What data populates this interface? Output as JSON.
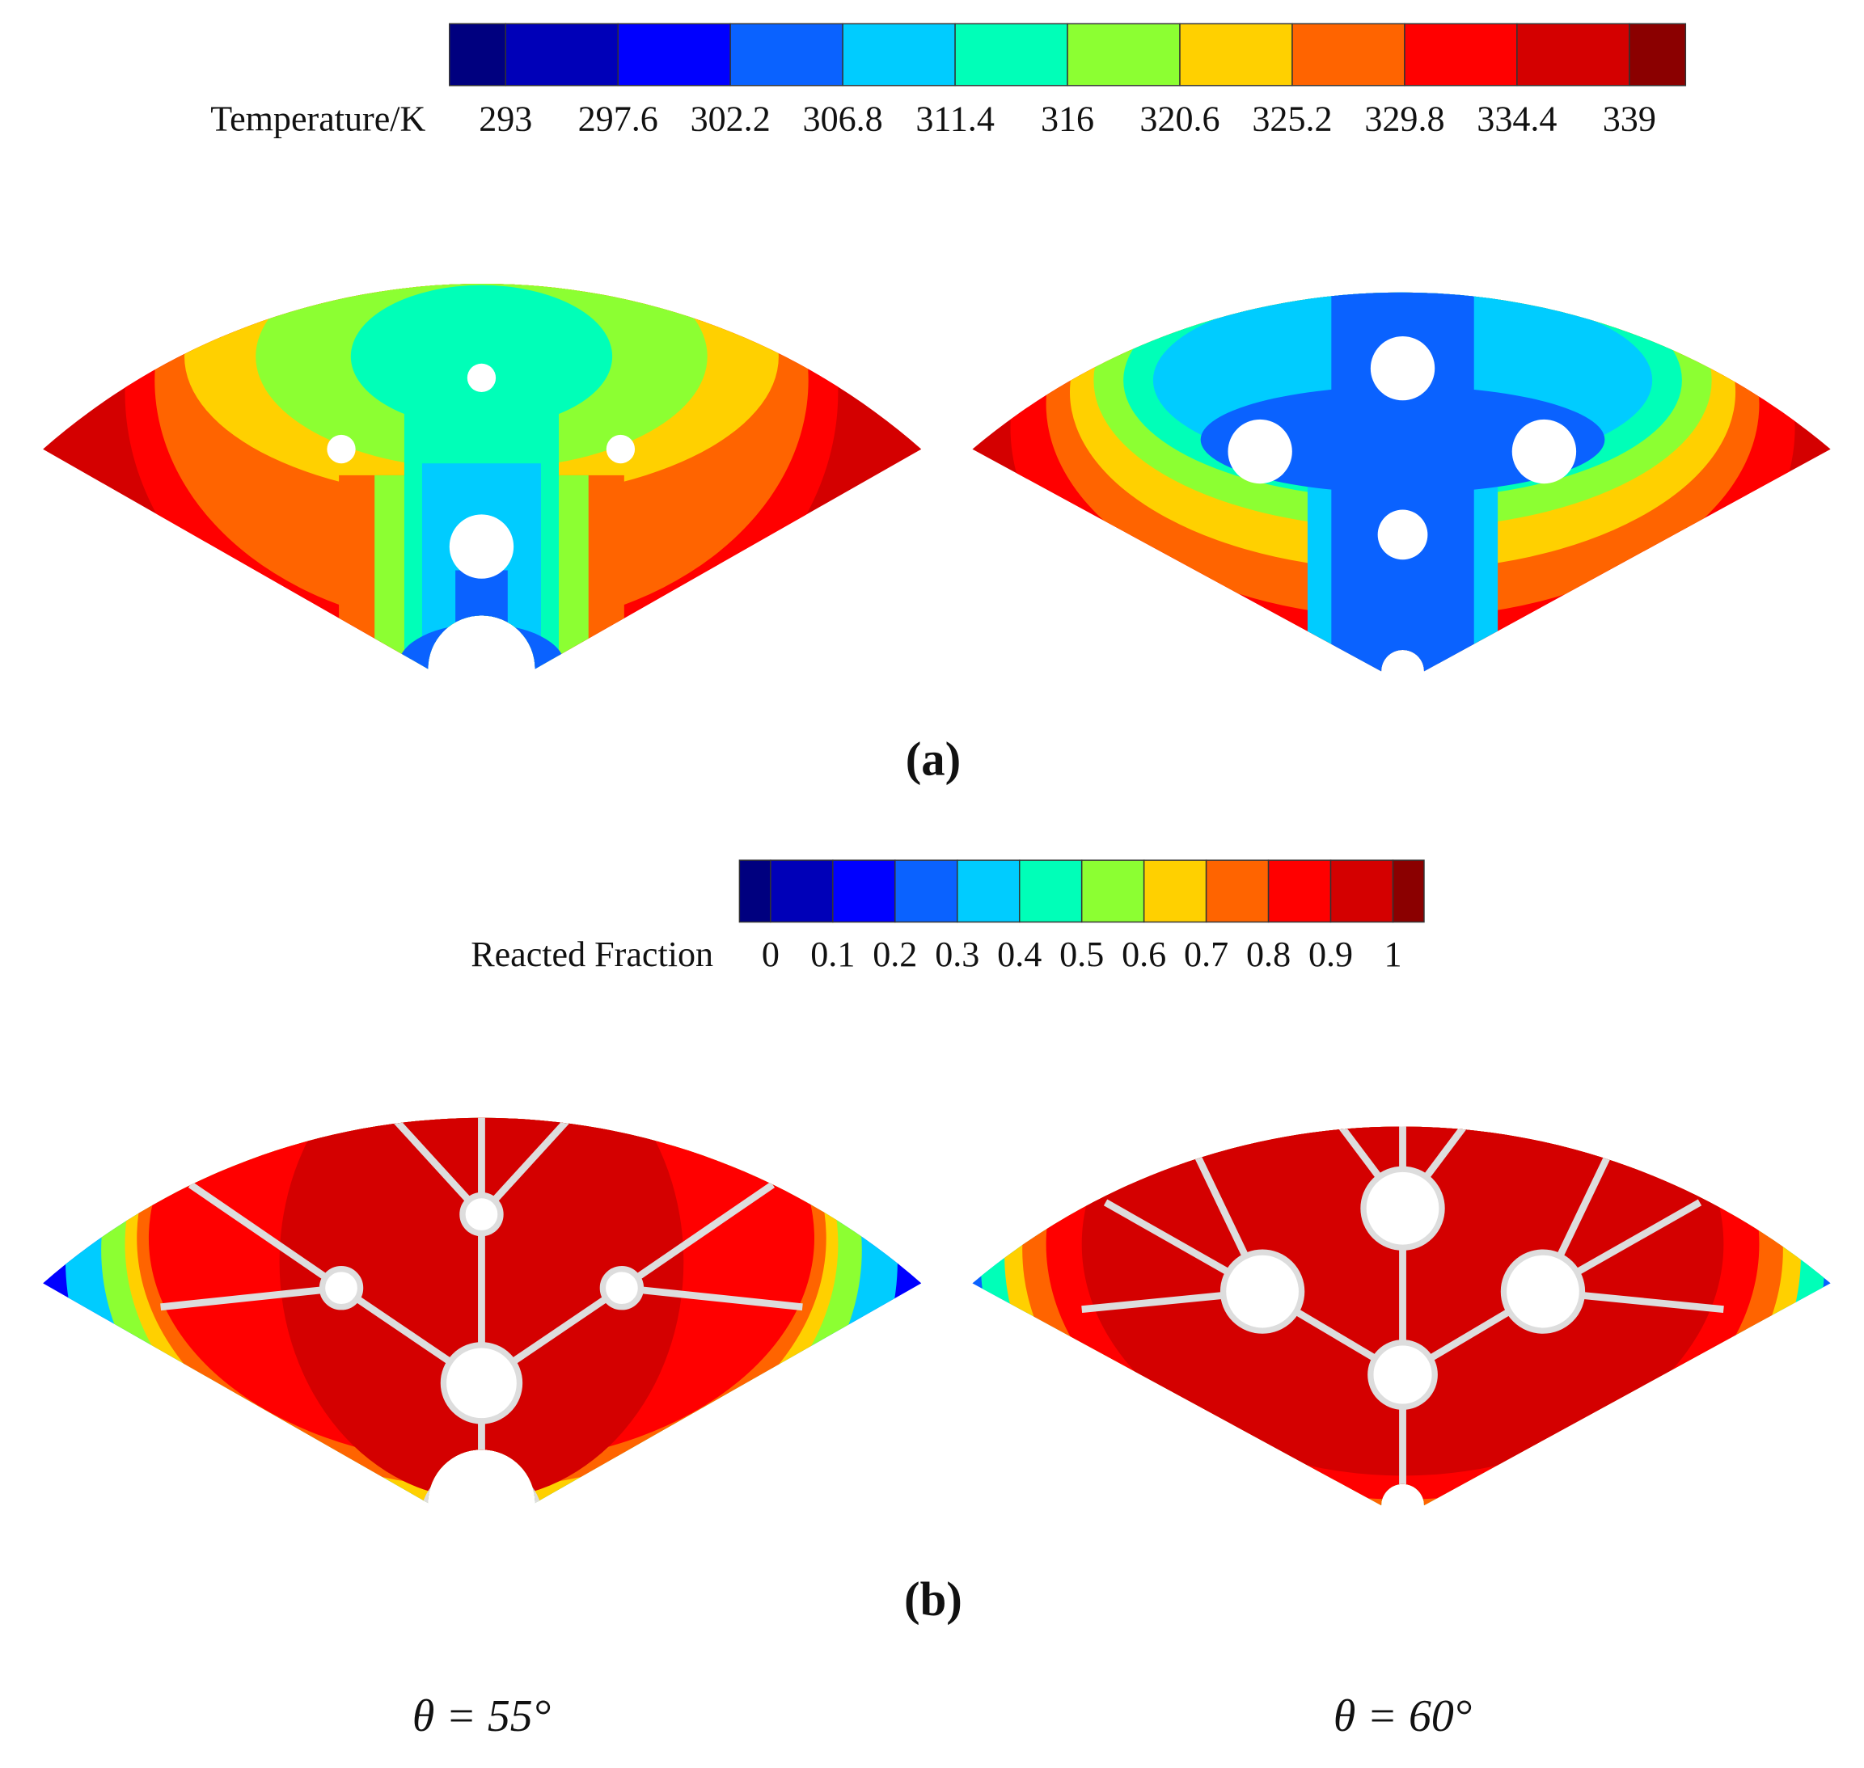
{
  "panels": [
    {
      "label": "(a)",
      "colorbar": {
        "title": "Temperature/K",
        "ticks": [
          293,
          297.6,
          302.2,
          306.8,
          311.4,
          316,
          320.6,
          325.2,
          329.8,
          334.4,
          339
        ],
        "colors": [
          "#00007f",
          "#0000b8",
          "#0000ff",
          "#0a62ff",
          "#00ccff",
          "#00ffb8",
          "#8cff32",
          "#ffd000",
          "#ff6400",
          "#ff0000",
          "#d40000",
          "#8b0000"
        ]
      }
    },
    {
      "label": "(b)",
      "colorbar": {
        "title": "Reacted Fraction",
        "ticks": [
          0,
          0.1,
          0.2,
          0.3,
          0.4,
          0.5,
          0.6,
          0.7,
          0.8,
          0.9,
          1
        ],
        "colors": [
          "#00007f",
          "#0000b8",
          "#0000ff",
          "#0a62ff",
          "#00ccff",
          "#00ffb8",
          "#8cff32",
          "#ffd000",
          "#ff6400",
          "#ff0000",
          "#d40000",
          "#8b0000"
        ]
      }
    }
  ],
  "columns": [
    "θ = 55°",
    "θ = 60°"
  ]
}
